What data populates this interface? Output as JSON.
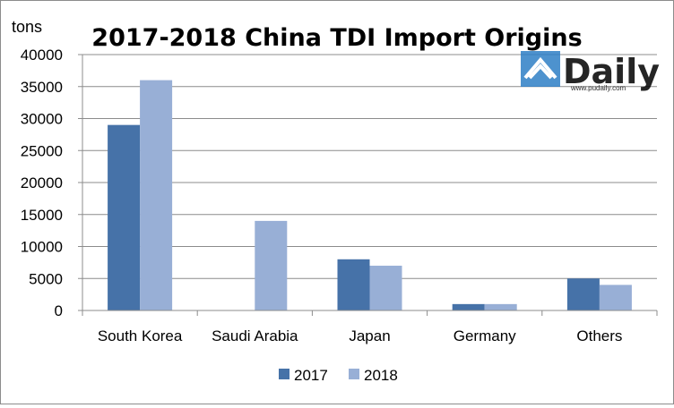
{
  "chart_data": {
    "type": "bar",
    "title": "2017-2018 China TDI Import Origins",
    "ylabel": "tons",
    "xlabel": "",
    "categories": [
      "South Korea",
      "Saudi Arabia",
      "Japan",
      "Germany",
      "Others"
    ],
    "series": [
      {
        "name": "2017",
        "values": [
          29000,
          0,
          8000,
          1000,
          5000
        ],
        "color": "#4672a8"
      },
      {
        "name": "2018",
        "values": [
          36000,
          14000,
          7000,
          1000,
          4000
        ],
        "color": "#98afd6"
      }
    ],
    "ylim": [
      0,
      40000
    ],
    "yticks": [
      0,
      5000,
      10000,
      15000,
      20000,
      25000,
      30000,
      35000,
      40000
    ],
    "grid": true,
    "legend_position": "bottom"
  },
  "watermark": {
    "text": "Daily",
    "url": "www.pudaily.com",
    "color": "#2e7fc6"
  }
}
